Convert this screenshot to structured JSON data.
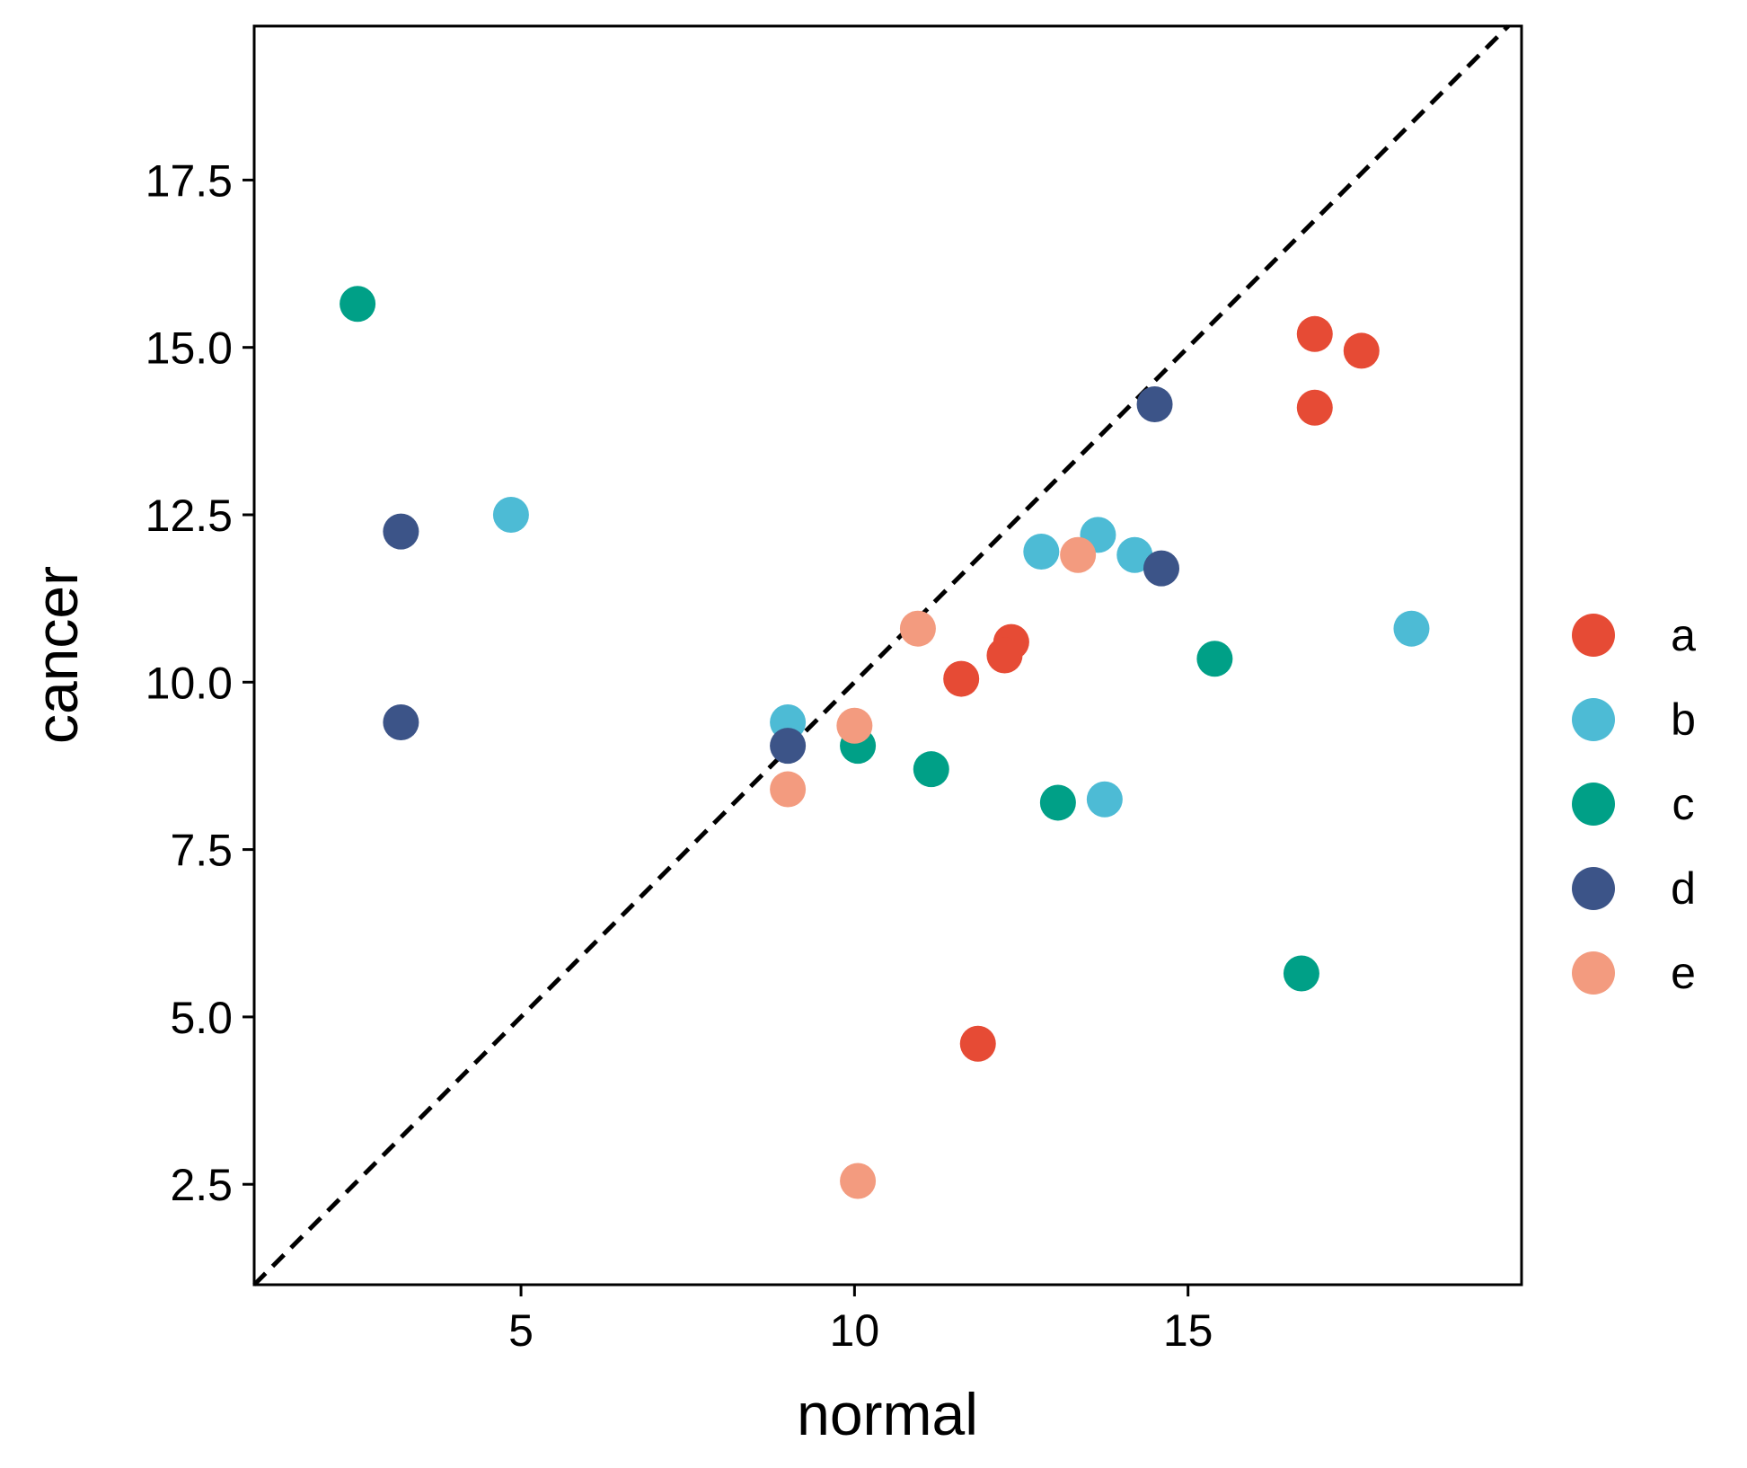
{
  "chart_data": {
    "type": "scatter",
    "title": "",
    "xlabel": "normal",
    "ylabel": "cancer",
    "xlim": [
      1,
      20
    ],
    "ylim": [
      1,
      19.8
    ],
    "x_ticks": [
      5,
      10,
      15
    ],
    "y_ticks": [
      2.5,
      5.0,
      7.5,
      10.0,
      12.5,
      15.0,
      17.5
    ],
    "x_tick_labels": [
      "5",
      "10",
      "15"
    ],
    "y_tick_labels": [
      "2.5",
      "5.0",
      "7.5",
      "10.0",
      "12.5",
      "15.0",
      "17.5"
    ],
    "grid": false,
    "legend_position": "right",
    "reference_line": {
      "style": "dashed",
      "color": "#000000",
      "equation": "y = x"
    },
    "series": [
      {
        "name": "a",
        "color": "#e64b35",
        "points": [
          {
            "x": 16.9,
            "y": 15.2
          },
          {
            "x": 17.6,
            "y": 14.95
          },
          {
            "x": 16.9,
            "y": 14.1
          },
          {
            "x": 12.35,
            "y": 10.6
          },
          {
            "x": 12.25,
            "y": 10.4
          },
          {
            "x": 11.6,
            "y": 10.05
          },
          {
            "x": 11.85,
            "y": 4.6
          }
        ]
      },
      {
        "name": "b",
        "color": "#4dbbd5",
        "points": [
          {
            "x": 4.85,
            "y": 12.5
          },
          {
            "x": 13.65,
            "y": 12.2
          },
          {
            "x": 12.8,
            "y": 11.95
          },
          {
            "x": 14.2,
            "y": 11.9
          },
          {
            "x": 18.35,
            "y": 10.8
          },
          {
            "x": 9.0,
            "y": 9.4
          },
          {
            "x": 13.75,
            "y": 8.25
          }
        ]
      },
      {
        "name": "c",
        "color": "#00a087",
        "points": [
          {
            "x": 2.55,
            "y": 15.65
          },
          {
            "x": 15.4,
            "y": 10.35
          },
          {
            "x": 10.05,
            "y": 9.05
          },
          {
            "x": 11.15,
            "y": 8.7
          },
          {
            "x": 13.05,
            "y": 8.2
          },
          {
            "x": 16.7,
            "y": 5.65
          }
        ]
      },
      {
        "name": "d",
        "color": "#3c5488",
        "points": [
          {
            "x": 14.5,
            "y": 14.15
          },
          {
            "x": 3.2,
            "y": 12.25
          },
          {
            "x": 14.6,
            "y": 11.7
          },
          {
            "x": 3.2,
            "y": 9.4
          },
          {
            "x": 9.0,
            "y": 9.05
          }
        ]
      },
      {
        "name": "e",
        "color": "#f39b7f",
        "points": [
          {
            "x": 13.35,
            "y": 11.9
          },
          {
            "x": 10.95,
            "y": 10.8
          },
          {
            "x": 10.0,
            "y": 9.35
          },
          {
            "x": 9.0,
            "y": 8.4
          },
          {
            "x": 10.05,
            "y": 2.55
          }
        ]
      }
    ]
  }
}
